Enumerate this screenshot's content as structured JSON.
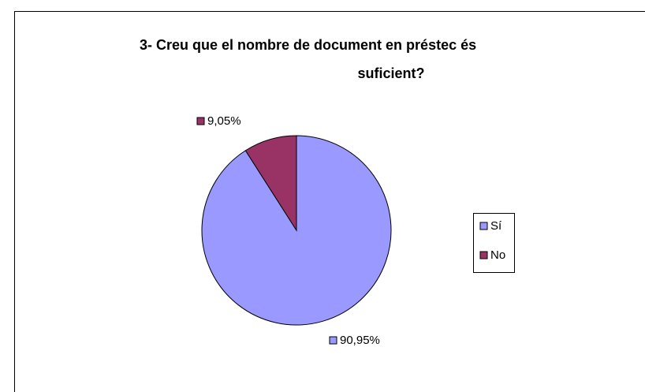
{
  "chart_data": {
    "type": "pie",
    "title": "3- Creu que el nombre de document en préstec és suficient?",
    "categories": [
      "Sí",
      "No"
    ],
    "values": [
      90.95,
      9.05
    ],
    "value_labels": [
      "90,95%",
      "9,05%"
    ],
    "colors": [
      "#9999ff",
      "#993366"
    ],
    "legend": "right"
  }
}
